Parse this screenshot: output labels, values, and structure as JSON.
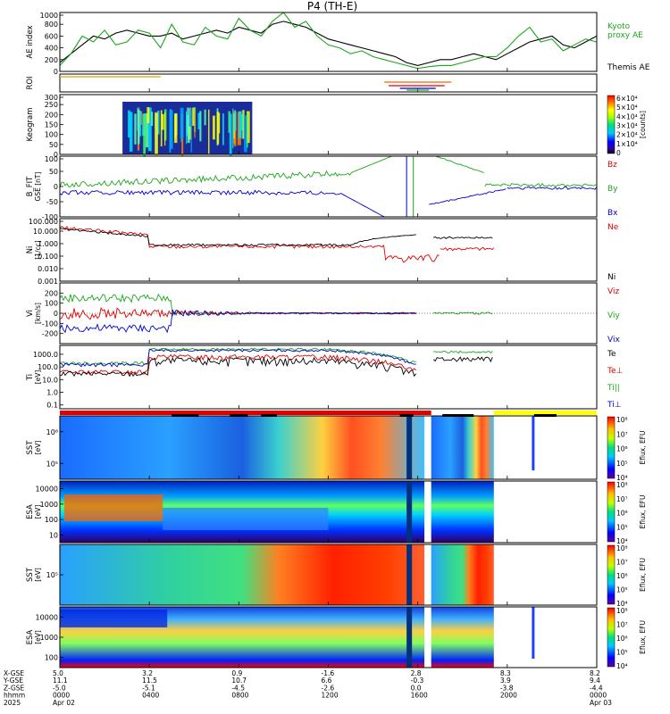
{
  "chart_data": {
    "type": "line",
    "title": "P4 (TH-E)",
    "panels": [
      {
        "id": "ae",
        "ylabel": "AE index",
        "ylim": [
          0,
          1000
        ],
        "yticks": [
          "0",
          "200",
          "400",
          "600",
          "800",
          "1000"
        ],
        "legend": [
          {
            "text": "Kyoto",
            "color": "#1aa61a"
          },
          {
            "text": "proxy AE",
            "color": "#1aa61a"
          },
          {
            "text": "Themis AE",
            "color": "#000000"
          }
        ],
        "series": [
          {
            "name": "Themis AE",
            "color": "#000000",
            "x": [
              0,
              0.5,
              1,
              1.5,
              2,
              2.5,
              3,
              3.5,
              4,
              4.5,
              5,
              5.5,
              6,
              6.5,
              7,
              7.5,
              8,
              8.5,
              9,
              9.5,
              10,
              10.5,
              11,
              11.5,
              12,
              12.5,
              13,
              13.5,
              14,
              14.5,
              15,
              15.5,
              16,
              16.5,
              17,
              17.5,
              18,
              18.5,
              19,
              19.5,
              20,
              20.5,
              21,
              21.5,
              22,
              22.5,
              23,
              23.5,
              24
            ],
            "y": [
              150,
              300,
              450,
              600,
              550,
              650,
              700,
              650,
              600,
              600,
              650,
              550,
              600,
              650,
              700,
              650,
              750,
              700,
              650,
              800,
              850,
              800,
              750,
              650,
              550,
              500,
              450,
              400,
              350,
              300,
              250,
              150,
              100,
              150,
              200,
              200,
              250,
              300,
              250,
              200,
              300,
              400,
              500,
              550,
              600,
              450,
              400,
              500,
              600
            ]
          },
          {
            "name": "Kyoto",
            "color": "#1aa61a",
            "x": [
              0,
              0.5,
              1,
              1.5,
              2,
              2.5,
              3,
              3.5,
              4,
              4.5,
              5,
              5.5,
              6,
              6.5,
              7,
              7.5,
              8,
              8.5,
              9,
              9.5,
              10,
              10.5,
              11,
              11.5,
              12,
              12.5,
              13,
              13.5,
              14,
              14.5,
              15,
              15.5,
              16,
              16.5,
              17,
              17.5,
              18,
              18.5,
              19,
              19.5,
              20,
              20.5,
              21,
              21.5,
              22,
              22.5,
              23,
              23.5,
              24
            ],
            "y": [
              100,
              300,
              600,
              500,
              700,
              450,
              500,
              700,
              650,
              400,
              800,
              500,
              450,
              750,
              600,
              550,
              900,
              700,
              600,
              850,
              1000,
              750,
              850,
              600,
              450,
              400,
              300,
              350,
              250,
              200,
              150,
              100,
              50,
              80,
              100,
              100,
              150,
              200,
              250,
              250,
              400,
              600,
              750,
              500,
              550,
              350,
              450,
              550,
              500
            ]
          }
        ]
      },
      {
        "id": "roi",
        "ylabel": "ROI"
      },
      {
        "id": "keogram",
        "ylabel": "Keogram",
        "ylim": [
          0,
          300
        ],
        "yticks": [
          "0",
          "50",
          "100",
          "150",
          "200",
          "250",
          "300"
        ],
        "colorbar": {
          "label": "[counts]",
          "ticks": [
            "0",
            "1×10⁴",
            "2×10⁴",
            "3×10⁴",
            "4×10⁴",
            "5×10⁴",
            "6×10⁴"
          ]
        }
      },
      {
        "id": "bfield",
        "ylabel": "B_FIT",
        "units": "GSE [nT]",
        "ylim": [
          -100,
          100
        ],
        "yticks": [
          "-100",
          "-50",
          "0",
          "50",
          "100"
        ],
        "legend": [
          {
            "text": "Bz",
            "color": "#e00000"
          },
          {
            "text": "By",
            "color": "#1aa61a"
          },
          {
            "text": "Bx",
            "color": "#0000cc"
          }
        ]
      },
      {
        "id": "density",
        "ylabel": "Ni",
        "units": "[1/cc]",
        "ylim": [
          0.001,
          100
        ],
        "scale": "log",
        "yticks": [
          "0.001",
          "0.010",
          "0.100",
          "1.000",
          "10.000",
          "100.000"
        ],
        "legend": [
          {
            "text": "Ne",
            "color": "#e00000"
          },
          {
            "text": "Ni",
            "color": "#000000"
          }
        ]
      },
      {
        "id": "velocity",
        "ylabel": "Vi",
        "units": "[km/s]",
        "ylim": [
          -300,
          300
        ],
        "yticks": [
          "-200",
          "-100",
          "0",
          "100",
          "200"
        ],
        "legend": [
          {
            "text": "Viz",
            "color": "#e00000"
          },
          {
            "text": "Viy",
            "color": "#1aa61a"
          },
          {
            "text": "Vix",
            "color": "#0000cc"
          }
        ]
      },
      {
        "id": "temperature",
        "ylabel": "Ti",
        "units": "[eV]",
        "ylim": [
          0.05,
          5000
        ],
        "scale": "log",
        "yticks": [
          "0.1",
          "1.0",
          "10.0",
          "100.0",
          "1000.0"
        ],
        "legend": [
          {
            "text": "Te",
            "color": "#000000"
          },
          {
            "text": "Te⊥",
            "color": "#e00000"
          },
          {
            "text": "Ti||",
            "color": "#1aa61a"
          },
          {
            "text": "Ti⊥",
            "color": "#0000cc"
          }
        ]
      },
      {
        "id": "sst_e",
        "ylabel": "SST",
        "units": "[eV]",
        "yticks": [
          "10⁵",
          "10⁶"
        ],
        "colorbar": {
          "label": "Eflux, EFU",
          "ticks": [
            "10⁴",
            "10⁵",
            "10⁶",
            "10⁷",
            "10⁸"
          ]
        }
      },
      {
        "id": "esa_e",
        "ylabel": "ESA",
        "units": "[eV]",
        "yticks": [
          "10",
          "100",
          "1000",
          "10000"
        ],
        "colorbar": {
          "label": "Eflux, EFU",
          "ticks": [
            "10⁴",
            "10⁵",
            "10⁶",
            "10⁷",
            "10⁸"
          ]
        }
      },
      {
        "id": "sst_i",
        "ylabel": "SST",
        "units": "[eV]",
        "yticks": [
          "10⁵"
        ],
        "colorbar": {
          "label": "Eflux, EFU",
          "ticks": [
            "10⁴",
            "10⁵",
            "10⁶",
            "10⁷",
            "10⁸"
          ]
        }
      },
      {
        "id": "esa_i",
        "ylabel": "ESA",
        "units": "[eV]",
        "yticks": [
          "100",
          "1000",
          "10000"
        ],
        "colorbar": {
          "label": "Eflux, EFU",
          "ticks": [
            "10⁴",
            "10⁵",
            "10⁶",
            "10⁷",
            "10⁸"
          ]
        }
      }
    ],
    "xaxis": {
      "row_labels": [
        "X-GSE",
        "Y-GSE",
        "Z-GSE",
        "hhmm",
        "2025"
      ],
      "ticks": [
        {
          "hour": 0,
          "values": [
            "5.0",
            "11.1",
            "-5.0",
            "0000",
            "Apr 02"
          ]
        },
        {
          "hour": 4,
          "values": [
            "3.2",
            "11.5",
            "-5.1",
            "0400",
            ""
          ]
        },
        {
          "hour": 8,
          "values": [
            "0.9",
            "10.7",
            "-4.5",
            "0800",
            ""
          ]
        },
        {
          "hour": 12,
          "values": [
            "-1.6",
            "6.6",
            "-2.6",
            "1200",
            ""
          ]
        },
        {
          "hour": 16,
          "values": [
            "2.8",
            "-0.3",
            "0.0",
            "1600",
            ""
          ]
        },
        {
          "hour": 20,
          "values": [
            "8.3",
            "3.9",
            "-3.8",
            "2000",
            ""
          ]
        },
        {
          "hour": 24,
          "values": [
            "8.2",
            "9.4",
            "-4.4",
            "0000",
            "Apr 03"
          ]
        }
      ]
    },
    "xlim": [
      0,
      24
    ]
  }
}
